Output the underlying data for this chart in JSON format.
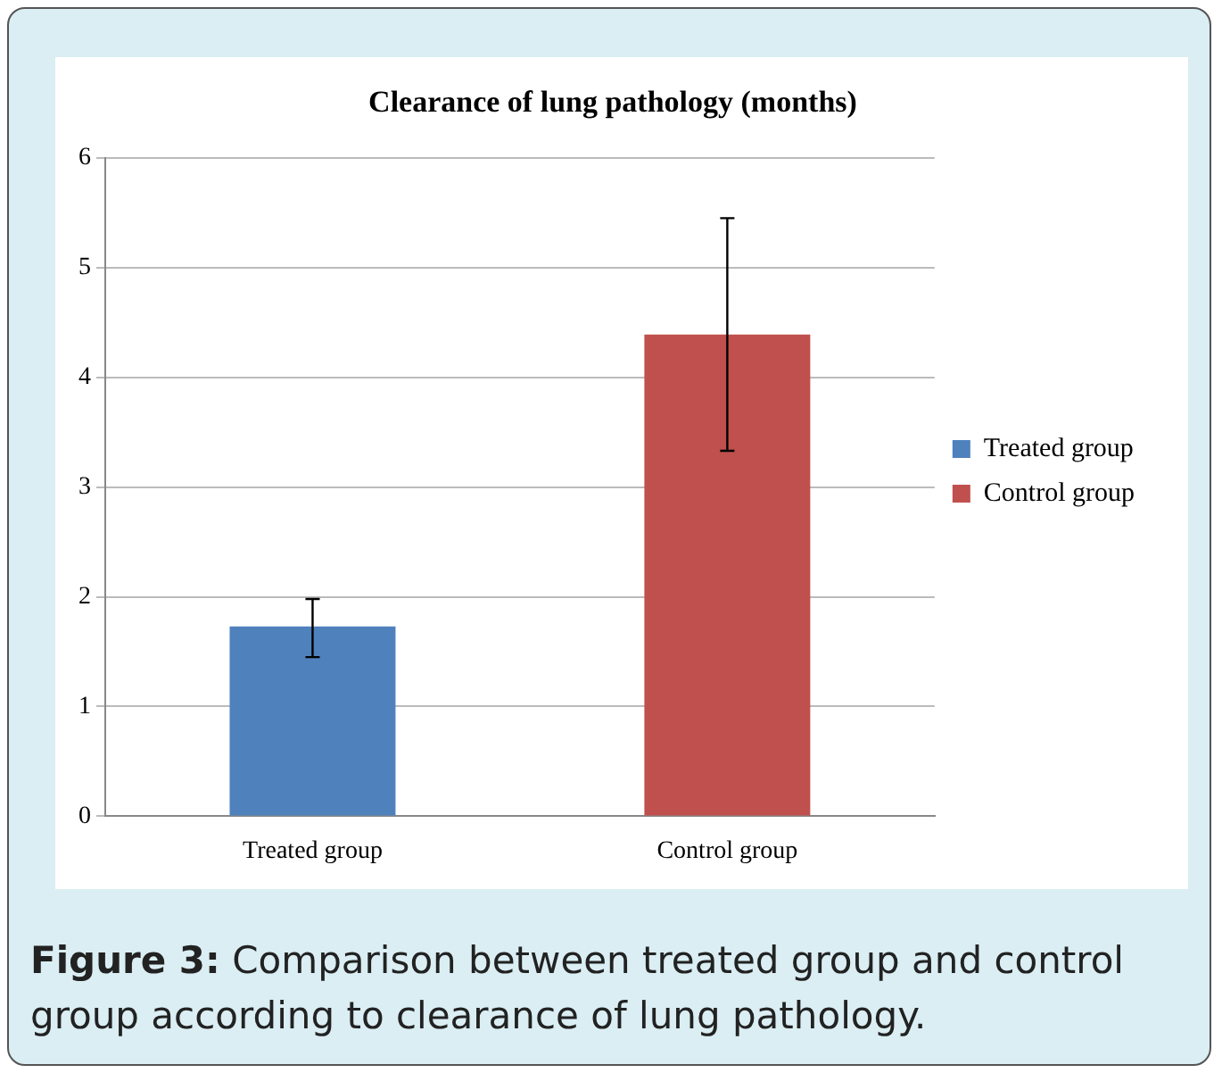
{
  "chart_data": {
    "type": "bar",
    "title": "Clearance of lung pathology (months)",
    "categories": [
      "Treated group",
      "Control group"
    ],
    "series": [
      {
        "name": "Treated group",
        "color": "#4f81bd",
        "values": [
          1.73,
          null
        ],
        "errors": [
          [
            1.45,
            1.98
          ],
          null
        ]
      },
      {
        "name": "Control group",
        "color": "#c0504d",
        "values": [
          null,
          4.39
        ],
        "errors": [
          null,
          [
            3.33,
            5.45
          ]
        ]
      }
    ],
    "ylim": [
      0,
      6
    ],
    "yticks": [
      0,
      1,
      2,
      3,
      4,
      5,
      6
    ],
    "grid": "y",
    "legend": "right",
    "annotations": [
      "Figure 3: Comparison between treated group and control group according to clearance of lung pathology."
    ]
  }
}
